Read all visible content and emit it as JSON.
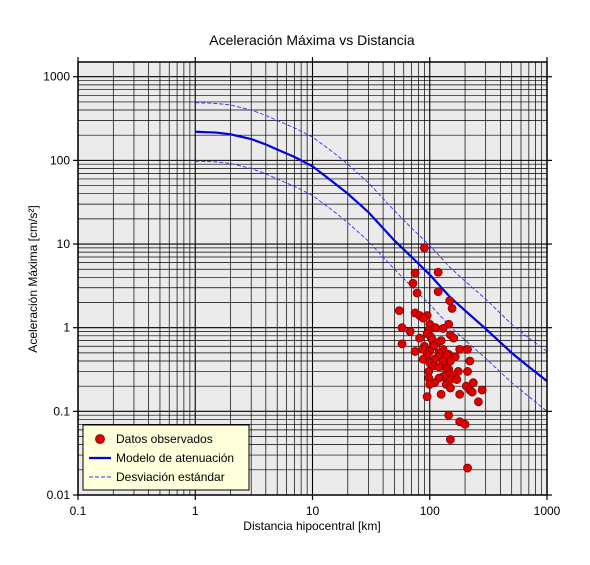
{
  "chart_data": {
    "type": "scatter",
    "title": "Aceleración Máxima vs Distancia",
    "xlabel": "Distancia hipocentral [km]",
    "ylabel": "Aceleración Máxima [cm/s²]",
    "xscale": "log",
    "yscale": "log",
    "xlim": [
      0.1,
      1000
    ],
    "ylim": [
      0.01,
      1500
    ],
    "xticks": [
      0.1,
      1,
      10,
      100,
      1000
    ],
    "xtick_labels": [
      "0.1",
      "1",
      "10",
      "100",
      "1000"
    ],
    "yticks": [
      0.01,
      0.1,
      1,
      10,
      100,
      1000
    ],
    "ytick_labels": [
      "0.01",
      "0.1",
      "1",
      "10",
      "100",
      "1000"
    ],
    "grid": true,
    "legend_position": "bottom-left",
    "colors": {
      "plot_background": "#ebebeb",
      "grid": "#000000",
      "points_fill": "#e00000",
      "points_stroke": "#800000",
      "model": "#0000e0",
      "deviation": "#3030ff",
      "legend_background": "#ffffdc"
    },
    "series": [
      {
        "name": "Datos observados",
        "kind": "points",
        "x": [
          90,
          75,
          118,
          72,
          78,
          118,
          55,
          148,
          155,
          75,
          82,
          95,
          100,
          88,
          58,
          145,
          110,
          98,
          68,
          112,
          130,
          95,
          150,
          102,
          82,
          105,
          125,
          58,
          115,
          90,
          160,
          108,
          88,
          180,
          130,
          100,
          120,
          145,
          95,
          75,
          140,
          210,
          118,
          165,
          88,
          110,
          130,
          150,
          100,
          108,
          120,
          138,
          145,
          140,
          175,
          98,
          210,
          220,
          148,
          160,
          130,
          98,
          120,
          150,
          170,
          110,
          100,
          138,
          235,
          205,
          150,
          220,
          280,
          230,
          180,
          125,
          95,
          260,
          145,
          180,
          200,
          150,
          210
        ],
        "y": [
          9.0,
          4.5,
          4.6,
          3.4,
          2.6,
          2.7,
          1.6,
          2.1,
          1.7,
          1.5,
          1.4,
          1.4,
          1.1,
          1.3,
          1.0,
          1.1,
          1.0,
          0.93,
          0.9,
          1.0,
          0.98,
          0.85,
          0.82,
          0.78,
          0.75,
          0.72,
          0.7,
          0.64,
          0.65,
          0.6,
          0.75,
          0.6,
          0.55,
          0.55,
          0.55,
          0.52,
          0.5,
          0.48,
          0.48,
          0.52,
          0.47,
          0.55,
          0.45,
          0.45,
          0.42,
          0.42,
          0.4,
          0.4,
          0.38,
          0.35,
          0.34,
          0.33,
          0.32,
          0.3,
          0.3,
          0.3,
          0.3,
          0.4,
          0.28,
          0.27,
          0.26,
          0.25,
          0.25,
          0.24,
          0.24,
          0.22,
          0.21,
          0.21,
          0.22,
          0.2,
          0.19,
          0.18,
          0.18,
          0.17,
          0.16,
          0.16,
          0.15,
          0.13,
          0.09,
          0.075,
          0.07,
          0.046,
          0.021
        ]
      },
      {
        "name": "Modelo de atenuación",
        "kind": "line",
        "x": [
          1,
          1.5,
          2,
          3,
          4,
          5,
          7,
          10,
          15,
          20,
          30,
          50,
          70,
          100,
          150,
          200,
          300,
          500,
          700,
          1000
        ],
        "y": [
          220,
          215,
          205,
          180,
          155,
          135,
          110,
          85,
          55,
          40,
          24,
          11,
          7,
          4.3,
          2.3,
          1.6,
          0.97,
          0.5,
          0.34,
          0.23
        ]
      },
      {
        "name": "Desviación estándar",
        "kind": "dashed",
        "x": [
          1,
          1.5,
          2,
          3,
          4,
          5,
          7,
          10,
          15,
          20,
          30,
          50,
          70,
          100,
          150,
          200,
          300,
          500,
          700,
          1000
        ],
        "y": [
          490,
          480,
          460,
          400,
          345,
          300,
          245,
          190,
          125,
          90,
          54,
          25,
          15.5,
          9.6,
          5.2,
          3.6,
          2.2,
          1.1,
          0.75,
          0.52
        ]
      },
      {
        "kind": "dashed",
        "x": [
          1,
          1.5,
          2,
          3,
          4,
          5,
          7,
          10,
          15,
          20,
          30,
          50,
          70,
          100,
          150,
          200,
          300,
          500,
          700,
          1000
        ],
        "y": [
          98,
          96,
          92,
          80,
          69,
          60,
          49,
          38,
          25,
          18,
          10.8,
          5.0,
          3.1,
          1.9,
          1.03,
          0.71,
          0.43,
          0.22,
          0.15,
          0.1
        ]
      }
    ]
  }
}
